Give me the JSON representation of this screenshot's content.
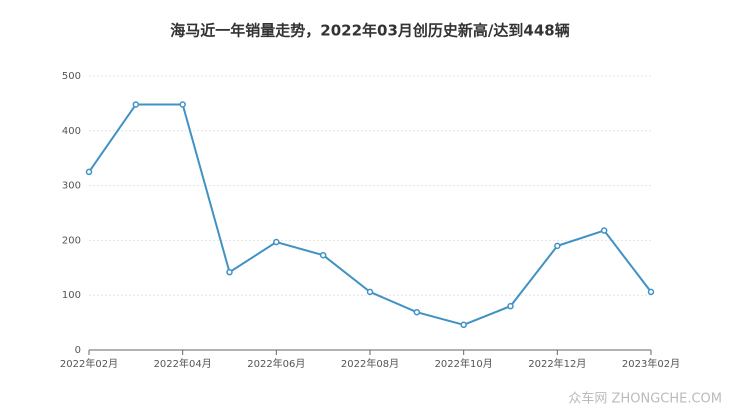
{
  "chart_data": {
    "type": "line",
    "title": "海马近一年销量走势，2022年03月创历史新高/达到448辆",
    "categories": [
      "2022年02月",
      null,
      "2022年04月",
      null,
      "2022年06月",
      null,
      "2022年08月",
      null,
      "2022年10月",
      null,
      "2022年12月",
      null,
      "2023年02月"
    ],
    "series": [
      {
        "name": "销量",
        "color": "#4192c4",
        "values": [
          325,
          448,
          448,
          142,
          197,
          173,
          106,
          69,
          46,
          80,
          190,
          218,
          106
        ]
      }
    ],
    "ylim": [
      0,
      500
    ],
    "yticks": [
      0,
      100,
      200,
      300,
      400,
      500
    ],
    "grid": true,
    "watermark": "众车网 ZHONGCHE.COM"
  }
}
